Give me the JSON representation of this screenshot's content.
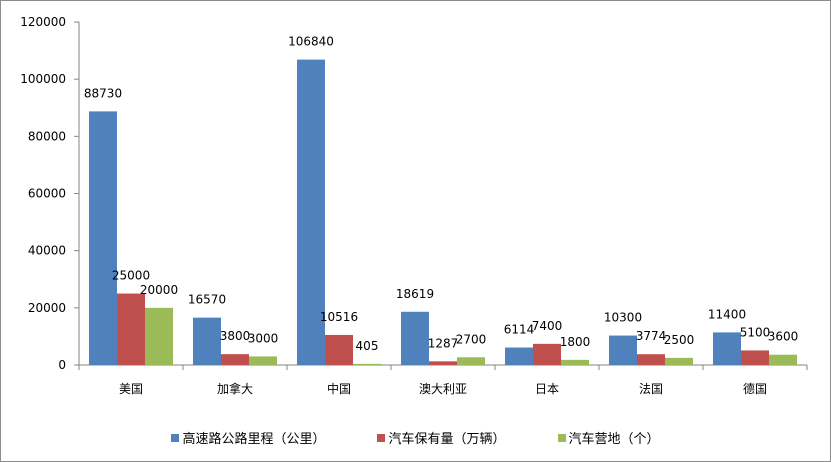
{
  "chart_data": {
    "type": "bar",
    "title": "",
    "xlabel": "",
    "ylabel": "",
    "ylim": [
      0,
      120000
    ],
    "yticks": [
      0,
      20000,
      40000,
      60000,
      80000,
      100000,
      120000
    ],
    "grid": false,
    "legend_position": "bottom",
    "categories": [
      "美国",
      "加拿大",
      "中国",
      "澳大利亚",
      "日本",
      "法国",
      "德国"
    ],
    "series": [
      {
        "name": "高速路公路里程（公里）",
        "color": "#4f81bd",
        "values": [
          88730,
          16570,
          106840,
          18619,
          6114,
          10300,
          11400
        ]
      },
      {
        "name": "汽车保有量（万辆）",
        "color": "#c0504d",
        "values": [
          25000,
          3800,
          10516,
          1287,
          7400,
          3774,
          5100
        ]
      },
      {
        "name": "汽车营地（个）",
        "color": "#9bbb59",
        "values": [
          20000,
          3000,
          405,
          2700,
          1800,
          2500,
          3600
        ]
      }
    ]
  }
}
